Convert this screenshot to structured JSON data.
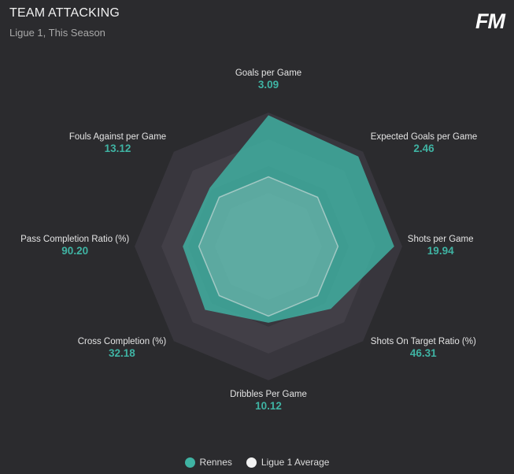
{
  "header": {
    "title": "TEAM ATTACKING",
    "subtitle": "Ligue 1, This Season",
    "logo": "FM"
  },
  "colors": {
    "background": "#2b2b2e",
    "grid_outer": "#38363d",
    "grid_inner": "#423f47",
    "series_rennes": "#3fb3a3",
    "series_average": "#e8e8e8",
    "value_text": "#3fb3a3"
  },
  "chart_data": {
    "type": "radar",
    "title": "TEAM ATTACKING",
    "subtitle": "Ligue 1, This Season",
    "axes": [
      {
        "label": "Goals per Game",
        "value": "3.09"
      },
      {
        "label": "Expected Goals per Game",
        "value": "2.46"
      },
      {
        "label": "Shots per Game",
        "value": "19.94"
      },
      {
        "label": "Shots On Target Ratio (%)",
        "value": "46.31"
      },
      {
        "label": "Dribbles Per Game",
        "value": "10.12"
      },
      {
        "label": "Cross Completion (%)",
        "value": "32.18"
      },
      {
        "label": "Pass Completion Ratio (%)",
        "value": "90.20"
      },
      {
        "label": "Fouls Against per Game",
        "value": "13.12"
      }
    ],
    "series": [
      {
        "name": "Rennes",
        "color": "#3fb3a3",
        "normalized": [
          0.98,
          0.95,
          0.94,
          0.66,
          0.57,
          0.67,
          0.64,
          0.62
        ]
      },
      {
        "name": "Ligue 1 Average",
        "color": "#e8e8e8",
        "normalized": [
          0.52,
          0.52,
          0.52,
          0.52,
          0.52,
          0.52,
          0.52,
          0.52
        ]
      }
    ],
    "legend": "bottom-center"
  },
  "legend": {
    "items": [
      {
        "label": "Rennes",
        "color": "#3fb3a3"
      },
      {
        "label": "Ligue 1 Average",
        "color": "#f2f2f2"
      }
    ]
  }
}
